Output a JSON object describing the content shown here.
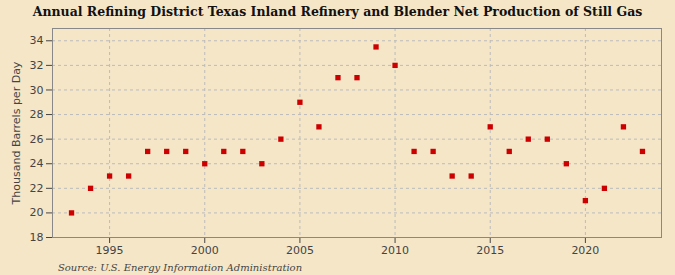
{
  "chart_data": {
    "type": "scatter",
    "title": "Annual Refining District Texas Inland Refinery and Blender Net Production of Still Gas",
    "ylabel": "Thousand Barrels per Day",
    "source": "Source: U.S. Energy Information Administration",
    "x": [
      1993,
      1994,
      1995,
      1996,
      1997,
      1998,
      1999,
      2000,
      2001,
      2002,
      2003,
      2004,
      2005,
      2006,
      2007,
      2008,
      2009,
      2010,
      2011,
      2012,
      2013,
      2014,
      2015,
      2016,
      2017,
      2018,
      2019,
      2020,
      2021,
      2022,
      2023
    ],
    "values": [
      20.0,
      22.0,
      23.0,
      23.0,
      25.0,
      25.0,
      25.0,
      24.0,
      25.0,
      25.0,
      24.0,
      26.0,
      29.0,
      27.0,
      31.0,
      31.0,
      33.5,
      32.0,
      25.0,
      25.0,
      23.0,
      23.0,
      27.0,
      25.0,
      26.0,
      26.0,
      24.0,
      21.0,
      22.0,
      27.0,
      25.0
    ],
    "color": "#cc0000",
    "marker": "square",
    "xlim": [
      1992.0,
      2024.0
    ],
    "ylim": [
      18,
      35
    ],
    "xticks": [
      1995,
      2000,
      2005,
      2010,
      2015,
      2020
    ],
    "yticks": [
      18,
      20,
      22,
      24,
      26,
      28,
      30,
      32,
      34
    ],
    "grid": true
  }
}
